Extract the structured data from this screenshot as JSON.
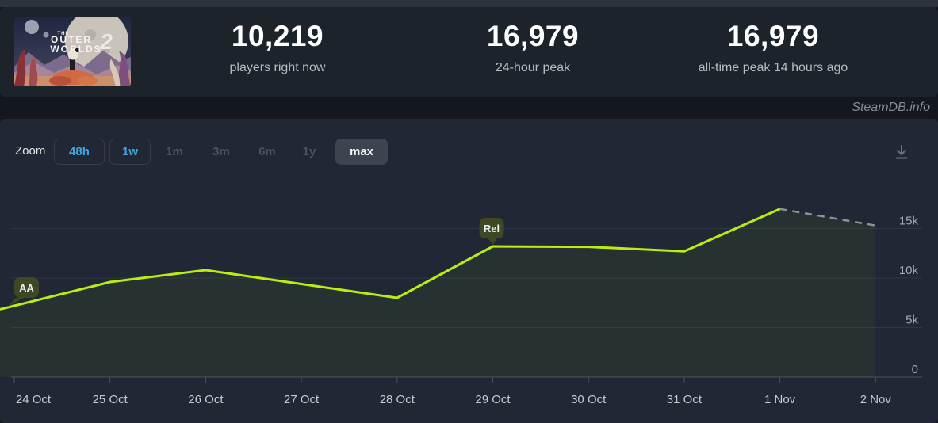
{
  "header": {
    "game_title": "The Outer Worlds 2",
    "thumbnail": {
      "title_top": "THE",
      "title_line1": "OUTER",
      "title_line2": "WORLDS",
      "title_number": "2"
    },
    "stats": [
      {
        "value": "10,219",
        "label": "players right now"
      },
      {
        "value": "16,979",
        "label": "24-hour peak"
      },
      {
        "value": "16,979",
        "label": "all-time peak 14 hours ago"
      }
    ]
  },
  "watermark": "SteamDB.info",
  "toolbar": {
    "zoom_label": "Zoom",
    "buttons": [
      {
        "label": "48h",
        "state": "available"
      },
      {
        "label": "1w",
        "state": "available"
      },
      {
        "label": "1m",
        "state": "disabled"
      },
      {
        "label": "3m",
        "state": "disabled"
      },
      {
        "label": "6m",
        "state": "disabled"
      },
      {
        "label": "1y",
        "state": "disabled"
      },
      {
        "label": "max",
        "state": "selected"
      }
    ],
    "download_icon": "download-icon"
  },
  "colors": {
    "line": "#b9ee11",
    "projection": "#8e9398",
    "area_fill": "rgba(185,238,16,0.05)",
    "badge": "#3e4823",
    "accent_blue": "#3ea6e0",
    "grid": "rgba(255,255,255,0.07)",
    "axis": "#4a525b",
    "ylabel": "#a3a9b0",
    "xlabel": "#c6cacf"
  },
  "chart_data": {
    "type": "line",
    "title": "",
    "xlabel": "",
    "ylabel": "",
    "categories": [
      "24 Oct",
      "25 Oct",
      "26 Oct",
      "27 Oct",
      "28 Oct",
      "29 Oct",
      "30 Oct",
      "31 Oct",
      "1 Nov",
      "2 Nov"
    ],
    "series": [
      {
        "name": "Players",
        "style": "solid",
        "color": "#b9ee11",
        "values": [
          7200,
          9600,
          10800,
          9400,
          8000,
          13200,
          13150,
          12700,
          16979,
          null
        ]
      },
      {
        "name": "Projection",
        "style": "dashed",
        "color": "#8e9398",
        "values": [
          null,
          null,
          null,
          null,
          null,
          null,
          null,
          null,
          16979,
          15300
        ]
      }
    ],
    "annotations": [
      {
        "label": "AA",
        "category": "24 Oct",
        "value": 7200,
        "tail": "down-left"
      },
      {
        "label": "Rel",
        "category": "29 Oct",
        "value": 13200,
        "tail": "down"
      }
    ],
    "yticks": [
      {
        "label": "15k",
        "value": 15000
      },
      {
        "label": "10k",
        "value": 10000
      },
      {
        "label": "5k",
        "value": 5000
      },
      {
        "label": "0",
        "value": 0
      }
    ],
    "ylim": [
      0,
      17500
    ],
    "grid": true,
    "legend": "none"
  }
}
